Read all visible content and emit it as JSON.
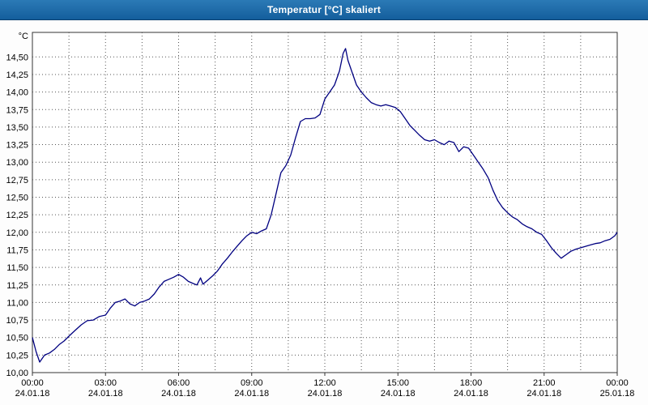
{
  "window": {
    "title": "Temperatur [°C] skaliert"
  },
  "chart_data": {
    "type": "line",
    "title": "Temperatur [°C] skaliert",
    "xlabel": "",
    "ylabel": "°C",
    "ylim": [
      10.0,
      14.85
    ],
    "x_range_hours": [
      0,
      24
    ],
    "x_grid_interval_hours": 1.5,
    "grid": true,
    "legend": "none",
    "colors": {
      "titlebar": "#145e9c",
      "line": "#000080",
      "grid": "#555555",
      "frame": "#333333",
      "plot_bg": "#ffffff"
    },
    "y_ticks": [
      {
        "value": 10.0,
        "label": "10,00"
      },
      {
        "value": 10.25,
        "label": "10,25"
      },
      {
        "value": 10.5,
        "label": "10,50"
      },
      {
        "value": 10.75,
        "label": "10,75"
      },
      {
        "value": 11.0,
        "label": "11,00"
      },
      {
        "value": 11.25,
        "label": "11,25"
      },
      {
        "value": 11.5,
        "label": "11,50"
      },
      {
        "value": 11.75,
        "label": "11,75"
      },
      {
        "value": 12.0,
        "label": "12,00"
      },
      {
        "value": 12.25,
        "label": "12,25"
      },
      {
        "value": 12.5,
        "label": "12,50"
      },
      {
        "value": 12.75,
        "label": "12,75"
      },
      {
        "value": 13.0,
        "label": "13,00"
      },
      {
        "value": 13.25,
        "label": "13,25"
      },
      {
        "value": 13.5,
        "label": "13,50"
      },
      {
        "value": 13.75,
        "label": "13,75"
      },
      {
        "value": 14.0,
        "label": "14,00"
      },
      {
        "value": 14.25,
        "label": "14,25"
      },
      {
        "value": 14.5,
        "label": "14,50"
      }
    ],
    "x_ticks": [
      {
        "hour": 0,
        "time": "00:00",
        "date": "24.01.18"
      },
      {
        "hour": 3,
        "time": "03:00",
        "date": "24.01.18"
      },
      {
        "hour": 6,
        "time": "06:00",
        "date": "24.01.18"
      },
      {
        "hour": 9,
        "time": "09:00",
        "date": "24.01.18"
      },
      {
        "hour": 12,
        "time": "12:00",
        "date": "24.01.18"
      },
      {
        "hour": 15,
        "time": "15:00",
        "date": "24.01.18"
      },
      {
        "hour": 18,
        "time": "18:00",
        "date": "24.01.18"
      },
      {
        "hour": 21,
        "time": "21:00",
        "date": "24.01.18"
      },
      {
        "hour": 24,
        "time": "00:00",
        "date": "25.01.18"
      }
    ],
    "series": [
      {
        "name": "Temperatur",
        "color": "#000080",
        "points": [
          [
            0.0,
            10.5
          ],
          [
            0.15,
            10.3
          ],
          [
            0.3,
            10.15
          ],
          [
            0.5,
            10.25
          ],
          [
            0.7,
            10.28
          ],
          [
            0.9,
            10.33
          ],
          [
            1.1,
            10.4
          ],
          [
            1.3,
            10.45
          ],
          [
            1.5,
            10.52
          ],
          [
            1.75,
            10.6
          ],
          [
            2.0,
            10.68
          ],
          [
            2.25,
            10.74
          ],
          [
            2.5,
            10.75
          ],
          [
            2.75,
            10.8
          ],
          [
            3.0,
            10.82
          ],
          [
            3.2,
            10.92
          ],
          [
            3.4,
            11.0
          ],
          [
            3.6,
            11.02
          ],
          [
            3.8,
            11.05
          ],
          [
            4.0,
            10.98
          ],
          [
            4.2,
            10.95
          ],
          [
            4.4,
            11.0
          ],
          [
            4.6,
            11.02
          ],
          [
            4.8,
            11.05
          ],
          [
            5.0,
            11.12
          ],
          [
            5.2,
            11.22
          ],
          [
            5.4,
            11.3
          ],
          [
            5.6,
            11.33
          ],
          [
            5.8,
            11.36
          ],
          [
            6.0,
            11.4
          ],
          [
            6.2,
            11.36
          ],
          [
            6.4,
            11.3
          ],
          [
            6.6,
            11.27
          ],
          [
            6.75,
            11.25
          ],
          [
            6.9,
            11.35
          ],
          [
            7.0,
            11.26
          ],
          [
            7.2,
            11.32
          ],
          [
            7.4,
            11.38
          ],
          [
            7.6,
            11.45
          ],
          [
            7.8,
            11.55
          ],
          [
            8.0,
            11.63
          ],
          [
            8.2,
            11.72
          ],
          [
            8.4,
            11.8
          ],
          [
            8.6,
            11.88
          ],
          [
            8.8,
            11.95
          ],
          [
            9.0,
            12.0
          ],
          [
            9.2,
            11.98
          ],
          [
            9.4,
            12.02
          ],
          [
            9.6,
            12.05
          ],
          [
            9.8,
            12.25
          ],
          [
            10.0,
            12.55
          ],
          [
            10.2,
            12.85
          ],
          [
            10.4,
            12.95
          ],
          [
            10.6,
            13.1
          ],
          [
            10.8,
            13.35
          ],
          [
            11.0,
            13.58
          ],
          [
            11.2,
            13.62
          ],
          [
            11.4,
            13.62
          ],
          [
            11.6,
            13.63
          ],
          [
            11.8,
            13.68
          ],
          [
            12.0,
            13.9
          ],
          [
            12.2,
            14.0
          ],
          [
            12.4,
            14.1
          ],
          [
            12.6,
            14.3
          ],
          [
            12.75,
            14.55
          ],
          [
            12.85,
            14.62
          ],
          [
            12.95,
            14.45
          ],
          [
            13.1,
            14.3
          ],
          [
            13.3,
            14.1
          ],
          [
            13.5,
            14.0
          ],
          [
            13.7,
            13.92
          ],
          [
            13.9,
            13.85
          ],
          [
            14.1,
            13.82
          ],
          [
            14.3,
            13.8
          ],
          [
            14.5,
            13.82
          ],
          [
            14.7,
            13.8
          ],
          [
            14.9,
            13.78
          ],
          [
            15.1,
            13.72
          ],
          [
            15.3,
            13.62
          ],
          [
            15.5,
            13.52
          ],
          [
            15.7,
            13.45
          ],
          [
            15.9,
            13.38
          ],
          [
            16.1,
            13.32
          ],
          [
            16.3,
            13.3
          ],
          [
            16.5,
            13.32
          ],
          [
            16.7,
            13.28
          ],
          [
            16.9,
            13.25
          ],
          [
            17.1,
            13.3
          ],
          [
            17.3,
            13.28
          ],
          [
            17.5,
            13.15
          ],
          [
            17.7,
            13.22
          ],
          [
            17.9,
            13.2
          ],
          [
            18.1,
            13.1
          ],
          [
            18.3,
            13.0
          ],
          [
            18.5,
            12.9
          ],
          [
            18.7,
            12.78
          ],
          [
            18.9,
            12.6
          ],
          [
            19.1,
            12.45
          ],
          [
            19.3,
            12.35
          ],
          [
            19.5,
            12.28
          ],
          [
            19.7,
            12.22
          ],
          [
            19.9,
            12.18
          ],
          [
            20.1,
            12.12
          ],
          [
            20.3,
            12.08
          ],
          [
            20.5,
            12.05
          ],
          [
            20.7,
            12.0
          ],
          [
            20.9,
            11.97
          ],
          [
            21.1,
            11.88
          ],
          [
            21.3,
            11.78
          ],
          [
            21.5,
            11.7
          ],
          [
            21.7,
            11.63
          ],
          [
            21.9,
            11.68
          ],
          [
            22.1,
            11.73
          ],
          [
            22.3,
            11.76
          ],
          [
            22.5,
            11.78
          ],
          [
            22.7,
            11.8
          ],
          [
            22.9,
            11.82
          ],
          [
            23.1,
            11.84
          ],
          [
            23.3,
            11.85
          ],
          [
            23.5,
            11.88
          ],
          [
            23.7,
            11.9
          ],
          [
            23.9,
            11.95
          ],
          [
            24.0,
            12.0
          ]
        ]
      }
    ]
  }
}
